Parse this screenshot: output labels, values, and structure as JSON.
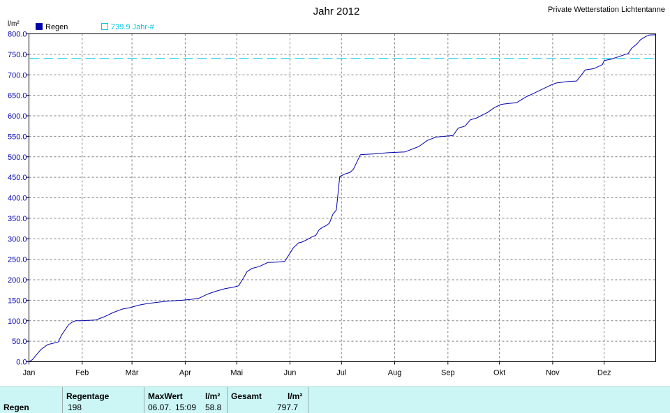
{
  "header": {
    "title": "Jahr 2012",
    "station": "Private Wetterstation Lichtentanne"
  },
  "legend": {
    "series_label": "Regen",
    "reference_label": "739.9 Jahr-#"
  },
  "colors": {
    "series": "#0000aa",
    "reference": "#00c8e6",
    "axis_text": "#0000aa",
    "stats_bg": "#ccf6f6"
  },
  "chart_data": {
    "type": "line",
    "title": "Jahr 2012",
    "ylabel": "l/m²",
    "ylim": [
      0,
      800
    ],
    "yticks": [
      "0.0",
      "50.0",
      "100.0",
      "150.0",
      "200.0",
      "250.0",
      "300.0",
      "350.0",
      "400.0",
      "450.0",
      "500.0",
      "550.0",
      "600.0",
      "650.0",
      "700.0",
      "750.0",
      "800.0"
    ],
    "xlabels": [
      "Jan",
      "Feb",
      "Mär",
      "Apr",
      "Mai",
      "Jun",
      "Jul",
      "Aug",
      "Sep",
      "Okt",
      "Nov",
      "Dez"
    ],
    "grid": true,
    "reference_line": {
      "label": "739.9 Jahr-#",
      "value": 739.9,
      "style": "dashed"
    },
    "series": [
      {
        "name": "Regen",
        "x_unit": "day of year",
        "x": [
          1,
          3,
          5,
          8,
          12,
          15,
          18,
          20,
          24,
          26,
          28,
          32,
          40,
          45,
          50,
          55,
          60,
          65,
          70,
          76,
          82,
          90,
          95,
          100,
          105,
          110,
          115,
          120,
          123,
          126,
          128,
          131,
          135,
          138,
          140,
          145,
          150,
          153,
          155,
          158,
          160,
          163,
          166,
          168,
          170,
          172,
          174,
          176,
          178,
          180,
          182,
          185,
          188,
          190,
          194,
          197,
          202,
          210,
          220,
          228,
          233,
          238,
          243,
          248,
          251,
          255,
          258,
          262,
          265,
          268,
          272,
          276,
          280,
          285,
          290,
          295,
          300,
          305,
          308,
          312,
          315,
          320,
          325,
          330,
          335,
          336,
          340,
          345,
          350,
          352,
          355,
          357,
          360,
          362,
          364,
          366
        ],
        "y": [
          0,
          5,
          15,
          30,
          42,
          45,
          48,
          65,
          90,
          96,
          100,
          100,
          102,
          110,
          120,
          128,
          132,
          138,
          142,
          145,
          148,
          150,
          152,
          155,
          165,
          172,
          178,
          182,
          185,
          205,
          220,
          228,
          232,
          238,
          242,
          243,
          245,
          265,
          278,
          290,
          292,
          298,
          305,
          308,
          322,
          328,
          332,
          338,
          360,
          370,
          452,
          458,
          462,
          470,
          505,
          506,
          507,
          510,
          512,
          525,
          540,
          548,
          550,
          552,
          570,
          575,
          590,
          595,
          602,
          608,
          620,
          628,
          630,
          632,
          645,
          655,
          665,
          675,
          680,
          682,
          684,
          685,
          712,
          715,
          725,
          735,
          738,
          745,
          752,
          765,
          775,
          785,
          793,
          797,
          797.5,
          797.7
        ]
      }
    ]
  },
  "stats": {
    "row_label": "Regen",
    "regentage_header": "Regentage",
    "regentage_value": "198",
    "maxwert_header": "MaxWert",
    "maxwert_unit": "l/m²",
    "maxwert_date": "06.07.",
    "maxwert_time": "15:09",
    "maxwert_value": "58.8",
    "gesamt_header": "Gesamt",
    "gesamt_unit": "l/m²",
    "gesamt_value": "797.7"
  }
}
